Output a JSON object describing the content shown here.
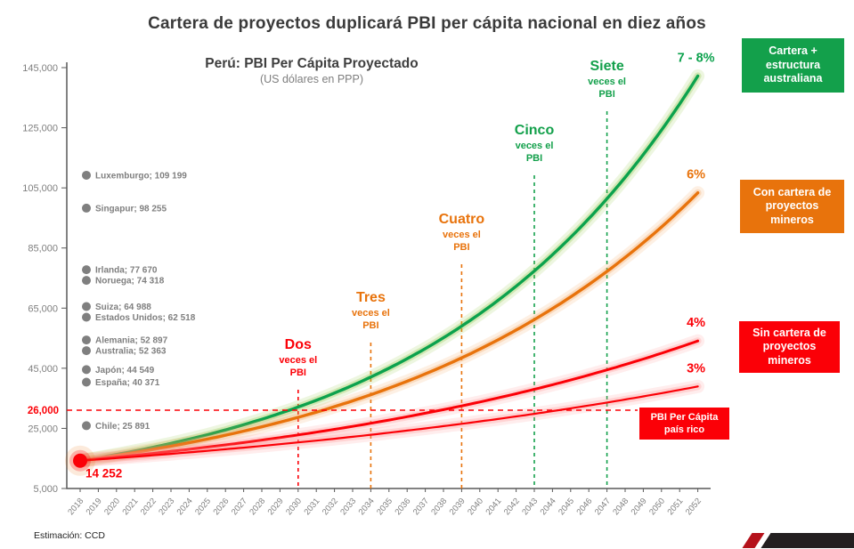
{
  "page": {
    "title": "Cartera de proyectos duplicará PBI per cápita nacional en diez años",
    "footer": "Estimación: CCD"
  },
  "chart_data": {
    "type": "line",
    "title": "Perú: PBI Per Cápita Proyectado",
    "subtitle": "(US dólares en PPP)",
    "x_axis": {
      "min_year": 2018,
      "max_year": 2052,
      "tick_step": 1
    },
    "y_axis": {
      "min": 5000,
      "max": 145000,
      "tick_step": 20000,
      "tick_labels": [
        "5,000",
        "25,000",
        "45,000",
        "65,000",
        "85,000",
        "105,000",
        "125,000",
        "145,000"
      ],
      "tick_values": [
        5000,
        25000,
        45000,
        65000,
        85000,
        105000,
        125000,
        145000
      ]
    },
    "start_point": {
      "year": 2018,
      "value": 14252,
      "label": "14 252",
      "color": "#fb0007"
    },
    "series": [
      {
        "name": "Cartera + estructura australiana",
        "rate_label": "7 - 8%",
        "growth_rate": 0.07,
        "start_value": 14252,
        "end_year": 2052,
        "color": "#0ca24d",
        "glow": "#8cc63f",
        "width": 3.4
      },
      {
        "name": "Con cartera de proyectos mineros",
        "rate_label": "6%",
        "growth_rate": 0.06,
        "start_value": 14252,
        "end_year": 2052,
        "color": "#e8730c",
        "glow": "#f5a358",
        "width": 3.4
      },
      {
        "name": "Sin cartera de proyectos mineros (escenario 4%)",
        "rate_label": "4%",
        "growth_rate": 0.04,
        "start_value": 14252,
        "end_year": 2052,
        "color": "#fb0007",
        "glow": "#ff8f8f",
        "width": 3.0
      },
      {
        "name": "Sin cartera de proyectos mineros (escenario 3%)",
        "rate_label": "3%",
        "growth_rate": 0.03,
        "start_value": 14252,
        "end_year": 2052,
        "color": "#fb0007",
        "glow": "#ff8f8f",
        "width": 2.2
      }
    ],
    "benchmarks": [
      {
        "name": "Luxemburgo",
        "value": 109199,
        "label": "Luxemburgo; 109 199"
      },
      {
        "name": "Singapur",
        "value": 98255,
        "label": "Singapur; 98 255"
      },
      {
        "name": "Irlanda",
        "value": 77670,
        "label": "Irlanda; 77 670"
      },
      {
        "name": "Noruega",
        "value": 74318,
        "label": "Noruega; 74 318"
      },
      {
        "name": "Suiza",
        "value": 64988,
        "label": "Suiza; 64 988"
      },
      {
        "name": "Estados Unidos",
        "value": 62518,
        "label": "Estados Unidos; 62 518"
      },
      {
        "name": "Alemania",
        "value": 52897,
        "label": "Alemania; 52 897"
      },
      {
        "name": "Australia",
        "value": 52363,
        "label": "Australia; 52 363"
      },
      {
        "name": "Japón",
        "value": 44549,
        "label": "Japón; 44 549"
      },
      {
        "name": "España",
        "value": 40371,
        "label": "España; 40 371"
      },
      {
        "name": "Chile",
        "value": 25891,
        "label": "Chile; 25 891"
      }
    ],
    "milestones": [
      {
        "word": "Dos",
        "sub1": "veces el",
        "sub2": "PBI",
        "year": 2030,
        "color": "#fb0007"
      },
      {
        "word": "Tres",
        "sub1": "veces el",
        "sub2": "PBI",
        "year": 2034,
        "color": "#e8730c"
      },
      {
        "word": "Cuatro",
        "sub1": "veces el",
        "sub2": "PBI",
        "year": 2039,
        "color": "#e8730c"
      },
      {
        "word": "Cinco",
        "sub1": "veces el",
        "sub2": "PBI",
        "year": 2043,
        "color": "#13a04b"
      },
      {
        "word": "Siete",
        "sub1": "veces el",
        "sub2": "PBI",
        "year": 2047,
        "color": "#13a04b"
      }
    ],
    "threshold": {
      "value": 26000,
      "label": "26,000",
      "box_text": "PBI Per Cápita\npaís rico",
      "color": "#fb0007",
      "box_color": "#fb0007"
    }
  },
  "legend_boxes": [
    {
      "text": "Cartera + estructura australiana",
      "color": "#13a04b"
    },
    {
      "text": "Con cartera de proyectos mineros",
      "color": "#e8730c"
    },
    {
      "text": "Sin cartera de proyectos mineros",
      "color": "#fb0007"
    }
  ]
}
